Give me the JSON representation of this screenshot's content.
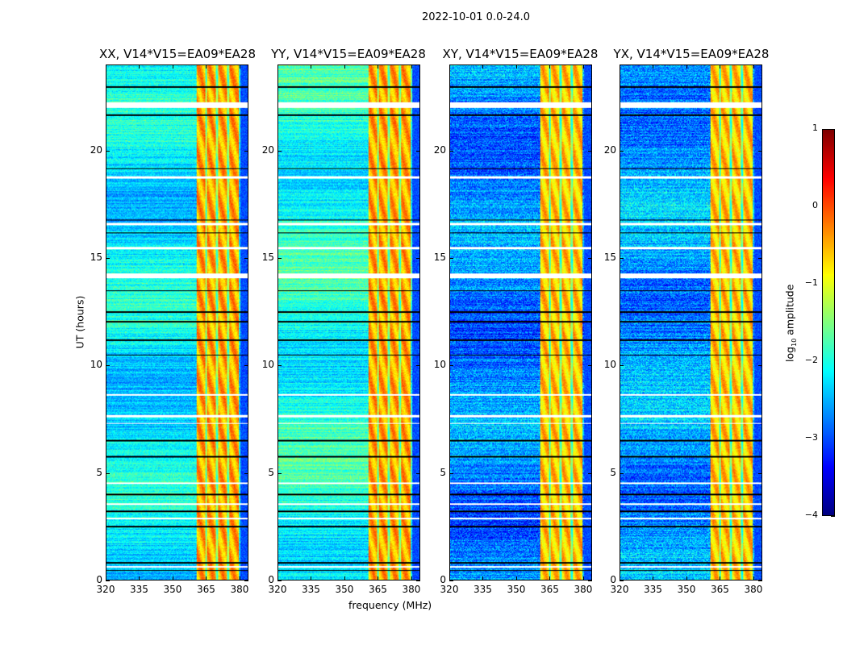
{
  "chart_data": {
    "type": "heatmap",
    "suptitle": "2022-10-01 0.0-24.0",
    "panels": [
      {
        "title": "XX, V14*V15=EA09*EA28",
        "background_level": -2.2
      },
      {
        "title": "YY, V14*V15=EA09*EA28",
        "background_level": -2.0
      },
      {
        "title": "XY, V14*V15=EA09*EA28",
        "background_level": -2.7
      },
      {
        "title": "YX, V14*V15=EA09*EA28",
        "background_level": -2.6
      }
    ],
    "xlabel": "frequency (MHz)",
    "ylabel": "UT (hours)",
    "xlim": [
      320,
      384
    ],
    "ylim": [
      0,
      24
    ],
    "xticks": [
      "320",
      "335",
      "350",
      "365",
      "380"
    ],
    "xtick_values": [
      320,
      335,
      350,
      365,
      380
    ],
    "yticks": [
      "0",
      "5",
      "10",
      "15",
      "20"
    ],
    "ytick_values": [
      0,
      5,
      10,
      15,
      20
    ],
    "rfi_band_mhz": [
      360.5,
      380
    ],
    "rfi_subband_gaps_mhz": [
      365,
      370,
      375
    ],
    "rfi_level": -0.6,
    "flagged_hours": [
      [
        22.05,
        22.3
      ],
      [
        18.75,
        18.85
      ],
      [
        16.55,
        16.65
      ],
      [
        15.45,
        15.55
      ],
      [
        14.1,
        14.3
      ],
      [
        8.6,
        8.7
      ],
      [
        7.6,
        7.7
      ],
      [
        7.3,
        7.35
      ],
      [
        4.5,
        4.55
      ],
      [
        3.5,
        3.6
      ],
      [
        2.85,
        2.9
      ],
      [
        0.6,
        0.65
      ]
    ],
    "zero_hours": [
      23.0,
      21.7,
      19.2,
      16.8,
      16.2,
      13.5,
      12.5,
      12.05,
      11.2,
      10.5,
      6.5,
      5.75,
      4.0,
      3.2,
      2.5,
      0.8,
      0.45
    ],
    "colorbar": {
      "label_prefix": "log",
      "label_sub": "10",
      "label_suffix": " amplitude",
      "range": [
        -4,
        1
      ],
      "ticks": [
        "1",
        "0",
        "−1",
        "−2",
        "−3",
        "−4"
      ],
      "tick_values": [
        1,
        0,
        -1,
        -2,
        -3,
        -4
      ],
      "colormap": "jet"
    }
  }
}
